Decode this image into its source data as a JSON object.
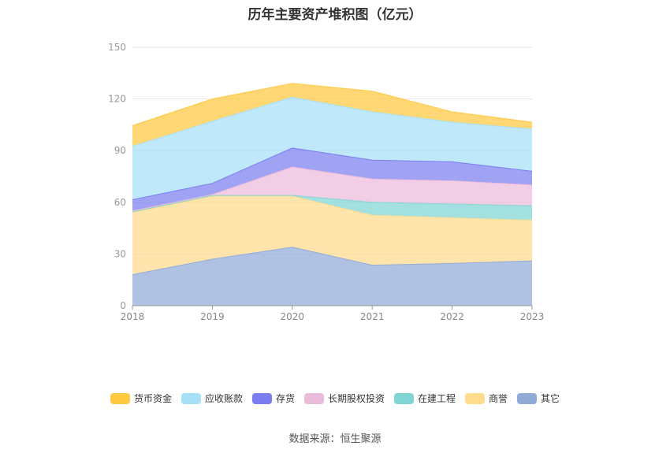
{
  "chart_data": {
    "type": "area",
    "stacked": true,
    "title": "历年主要资产堆积图（亿元）",
    "categories": [
      "2018",
      "2019",
      "2020",
      "2021",
      "2022",
      "2023"
    ],
    "y_ticks": [
      "0",
      "30",
      "60",
      "90",
      "120",
      "150"
    ],
    "ylim": [
      0,
      150
    ],
    "legend_position": "bottom",
    "series": [
      {
        "name": "其它",
        "color": "#91abd8",
        "values": [
          18,
          27,
          34,
          23.5,
          24.5,
          26
        ]
      },
      {
        "name": "商誉",
        "color": "#ffdb8c",
        "values": [
          36,
          36.5,
          29.5,
          29,
          26.5,
          23.5
        ]
      },
      {
        "name": "在建工程",
        "color": "#7fd6d4",
        "values": [
          0.5,
          0.5,
          0.5,
          7.5,
          8,
          8.5
        ]
      },
      {
        "name": "长期股权投资",
        "color": "#ebbbdb",
        "values": [
          0.5,
          0.5,
          16.5,
          13.5,
          13.5,
          12
        ]
      },
      {
        "name": "存货",
        "color": "#7b7ef0",
        "values": [
          6.5,
          6.5,
          11,
          11,
          11,
          8
        ]
      },
      {
        "name": "应收账款",
        "color": "#a6dff8",
        "values": [
          31,
          36,
          29.5,
          28,
          23,
          24.5
        ]
      },
      {
        "name": "货币资金",
        "color": "#ffc940",
        "values": [
          12,
          13,
          8,
          12,
          6,
          4
        ]
      }
    ]
  },
  "legend_order": [
    6,
    5,
    4,
    3,
    2,
    1,
    0
  ],
  "source_text": "数据来源：恒生聚源"
}
